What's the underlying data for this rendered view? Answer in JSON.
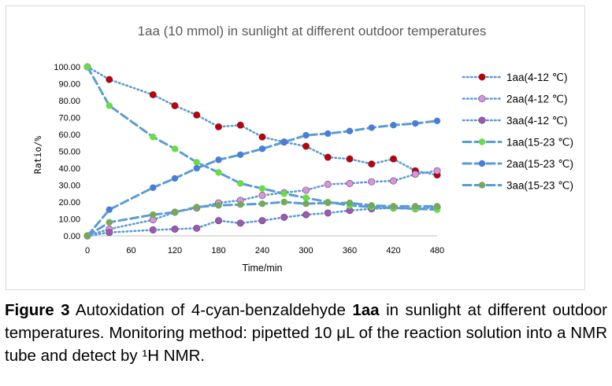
{
  "chart_data": {
    "type": "line",
    "title": "1aa (10 mmol) in sunlight at different outdoor temperatures",
    "xlabel": "Time/min",
    "ylabel": "Ratio/%",
    "xlim": [
      0,
      480
    ],
    "ylim": [
      0,
      100
    ],
    "x_ticks": [
      "0",
      "60",
      "120",
      "180",
      "240",
      "300",
      "360",
      "420",
      "480"
    ],
    "y_ticks": [
      "0.00",
      "10.00",
      "20.00",
      "30.00",
      "40.00",
      "50.00",
      "60.00",
      "70.00",
      "80.00",
      "90.00",
      "100.00"
    ],
    "legend_position": "right",
    "series": [
      {
        "name": "1aa(4-12 ℃)",
        "style": "dotted",
        "color": "#5b9bd5",
        "marker_color": "#c00000",
        "x": [
          0,
          30,
          90,
          120,
          150,
          180,
          210,
          240,
          270,
          300,
          330,
          360,
          390,
          420,
          450,
          480
        ],
        "y": [
          100,
          92.5,
          83.5,
          77,
          71.5,
          64.5,
          65.5,
          58.5,
          55.5,
          53,
          46.5,
          45.5,
          42.5,
          45.5,
          38.5,
          36
        ]
      },
      {
        "name": "2aa(4-12 ℃)",
        "style": "dotted",
        "color": "#5b9bd5",
        "marker_color": "#d896d8",
        "x": [
          0,
          30,
          90,
          120,
          150,
          180,
          210,
          240,
          270,
          300,
          330,
          360,
          390,
          420,
          450,
          480
        ],
        "y": [
          0,
          4,
          9.5,
          14,
          16.5,
          19.5,
          21,
          24,
          25.5,
          27,
          30.5,
          31,
          32,
          32.5,
          36.5,
          38.5
        ]
      },
      {
        "name": "3aa(4-12 ℃)",
        "style": "dotted",
        "color": "#5b9bd5",
        "marker_color": "#9b59b6",
        "x": [
          0,
          30,
          90,
          120,
          150,
          180,
          210,
          240,
          270,
          300,
          330,
          360,
          390,
          420,
          450,
          480
        ],
        "y": [
          0,
          2,
          3.5,
          4,
          4.5,
          9,
          7.5,
          9,
          11,
          12.5,
          13.5,
          15,
          16,
          16.5,
          16,
          17
        ]
      },
      {
        "name": "1aa(15-23 ℃)",
        "style": "dashed",
        "color": "#5b9bd5",
        "marker_color": "#66dd44",
        "x": [
          0,
          30,
          90,
          120,
          150,
          180,
          210,
          240,
          270,
          300,
          330,
          360,
          390,
          420,
          450,
          480
        ],
        "y": [
          100,
          77,
          58.5,
          51.5,
          43.5,
          37.5,
          31,
          28,
          25,
          22.5,
          20,
          18,
          17,
          16.5,
          16,
          15.5
        ]
      },
      {
        "name": "2aa(15-23 ℃)",
        "style": "dashed",
        "color": "#5b9bd5",
        "marker_color": "#4a7ed6",
        "x": [
          0,
          30,
          90,
          120,
          150,
          180,
          210,
          240,
          270,
          300,
          330,
          360,
          390,
          420,
          450,
          480
        ],
        "y": [
          0,
          15.5,
          28.5,
          34,
          40,
          45,
          48,
          51.5,
          55.5,
          59.5,
          60.5,
          62,
          64,
          65.5,
          66.5,
          68
        ]
      },
      {
        "name": "3aa(15-23 ℃)",
        "style": "dashed",
        "color": "#5b9bd5",
        "marker_color": "#77a855",
        "x": [
          0,
          30,
          90,
          120,
          150,
          180,
          210,
          240,
          270,
          300,
          330,
          360,
          390,
          420,
          450,
          480
        ],
        "y": [
          0,
          8,
          12.5,
          14,
          17,
          18,
          18.5,
          19,
          20,
          19,
          19.5,
          19.5,
          18,
          17.5,
          17.5,
          17.5
        ]
      }
    ]
  },
  "caption": {
    "label": "Figure 3",
    "text_before": " Autoxidation of 4-cyan-benzaldehyde ",
    "compound": "1aa",
    "text_after": " in sunlight at different outdoor temperatures. Monitoring method: pipetted 10 μL of the reaction solution into a NMR tube and detect by ¹H NMR."
  }
}
